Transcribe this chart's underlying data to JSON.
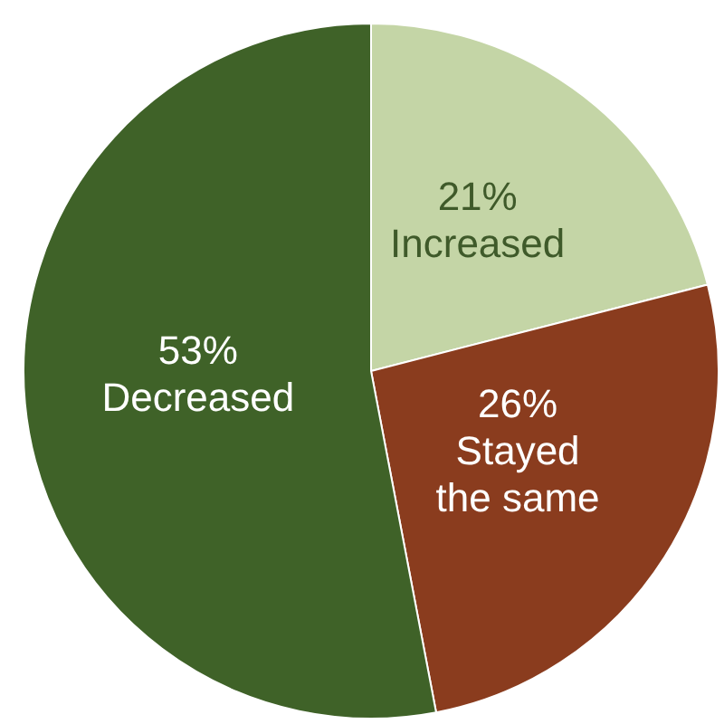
{
  "chart_data": {
    "type": "pie",
    "categories": [
      "Increased",
      "Stayed the same",
      "Decreased"
    ],
    "values": [
      21,
      26,
      53
    ],
    "value_labels": [
      "21%",
      "26%",
      "53%"
    ],
    "colors": [
      "#c4d5a6",
      "#8a3c1e",
      "#3f6228"
    ]
  }
}
